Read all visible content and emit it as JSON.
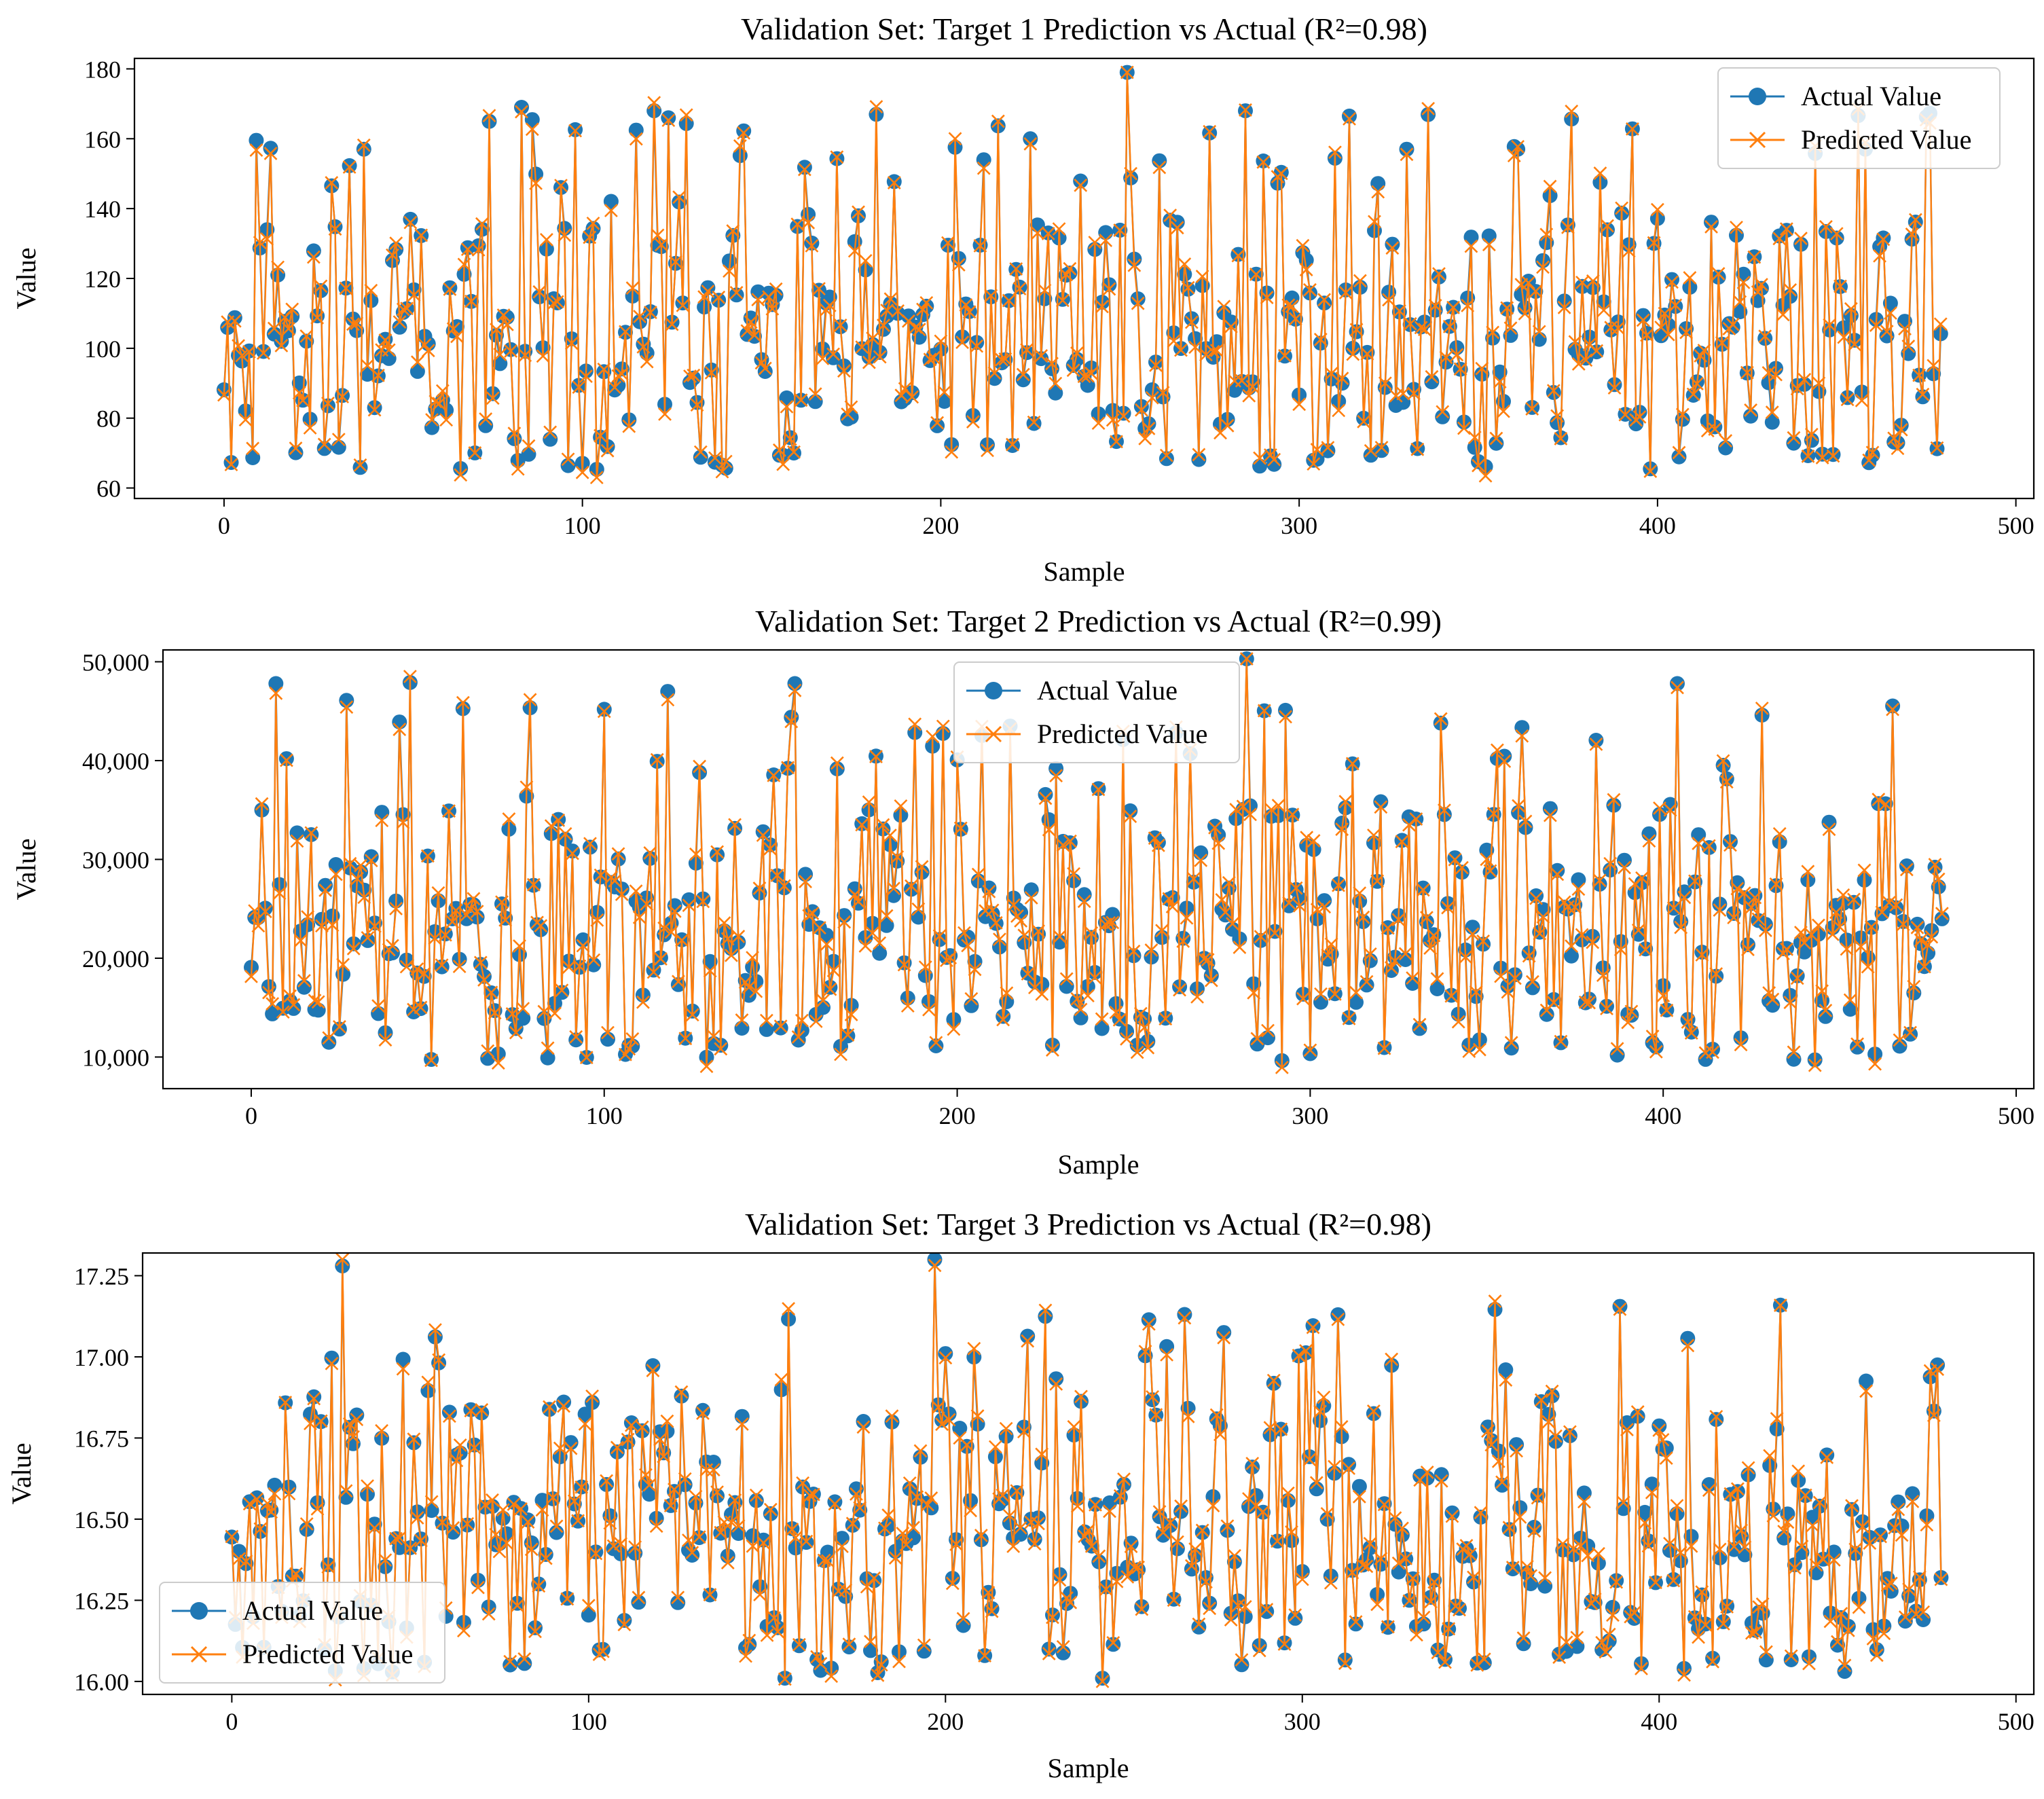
{
  "chart_data": [
    {
      "type": "line",
      "title": "Validation Set: Target 1 Prediction vs Actual (R²=0.98)",
      "xlabel": "Sample",
      "ylabel": "Value",
      "xlim": [
        -25,
        505
      ],
      "ylim": [
        57,
        183
      ],
      "xticks": [
        0,
        100,
        200,
        300,
        400,
        500
      ],
      "xtick_labels": [
        "0",
        "100",
        "200",
        "300",
        "400",
        "500"
      ],
      "yticks": [
        60,
        80,
        100,
        120,
        140,
        160,
        180
      ],
      "ytick_labels": [
        "60",
        "80",
        "100",
        "120",
        "140",
        "160",
        "180"
      ],
      "legend_position": "top-right",
      "n_samples": 480,
      "value_range": [
        63,
        179
      ],
      "peaks": [
        {
          "x": 252,
          "y": 179
        },
        {
          "x": 120,
          "y": 168
        },
        {
          "x": 285,
          "y": 168
        },
        {
          "x": 124,
          "y": 166
        },
        {
          "x": 83,
          "y": 169
        },
        {
          "x": 225,
          "y": 160
        },
        {
          "x": 458,
          "y": 157
        },
        {
          "x": 330,
          "y": 157
        },
        {
          "x": 361,
          "y": 157
        },
        {
          "x": 39,
          "y": 157
        }
      ],
      "series": [
        {
          "name": "Actual Value",
          "color": "#1f77b4",
          "marker": "circle",
          "seed": 11
        },
        {
          "name": "Predicted Value",
          "color": "#ff7f0e",
          "marker": "x",
          "seed": 11
        }
      ]
    },
    {
      "type": "line",
      "title": "Validation Set: Target 2 Prediction vs Actual (R²=0.99)",
      "xlabel": "Sample",
      "ylabel": "Value",
      "xlim": [
        -25,
        505
      ],
      "ylim": [
        6800,
        51200
      ],
      "xticks": [
        0,
        100,
        200,
        300,
        400,
        500
      ],
      "xtick_labels": [
        "0",
        "100",
        "200",
        "300",
        "400",
        "500"
      ],
      "yticks": [
        10000,
        20000,
        30000,
        40000,
        50000
      ],
      "ytick_labels": [
        "10,000",
        "20,000",
        "30,000",
        "40,000",
        "50,000"
      ],
      "legend_position": "top-center",
      "n_samples": 480,
      "value_range": [
        8800,
        50300
      ],
      "peaks": [
        {
          "x": 282,
          "y": 50300
        },
        {
          "x": 7,
          "y": 47800
        },
        {
          "x": 45,
          "y": 47900
        },
        {
          "x": 154,
          "y": 47800
        },
        {
          "x": 118,
          "y": 47000
        },
        {
          "x": 404,
          "y": 47800
        },
        {
          "x": 428,
          "y": 44600
        },
        {
          "x": 337,
          "y": 43800
        },
        {
          "x": 127,
          "y": 38800
        },
        {
          "x": 353,
          "y": 40200
        }
      ],
      "series": [
        {
          "name": "Actual Value",
          "color": "#1f77b4",
          "marker": "circle",
          "seed": 23
        },
        {
          "name": "Predicted Value",
          "color": "#ff7f0e",
          "marker": "x",
          "seed": 23
        }
      ]
    },
    {
      "type": "line",
      "title": "Validation Set: Target 3 Prediction vs Actual (R²=0.98)",
      "xlabel": "Sample",
      "ylabel": "Value",
      "xlim": [
        -25,
        505
      ],
      "ylim": [
        15.96,
        17.32
      ],
      "xticks": [
        0,
        100,
        200,
        300,
        400,
        500
      ],
      "xtick_labels": [
        "0",
        "100",
        "200",
        "300",
        "400",
        "500"
      ],
      "yticks": [
        16.0,
        16.25,
        16.5,
        16.75,
        17.0,
        17.25
      ],
      "ytick_labels": [
        "16.00",
        "16.25",
        "16.50",
        "16.75",
        "17.00",
        "17.25"
      ],
      "legend_position": "bottom-left",
      "n_samples": 480,
      "value_range": [
        16.0,
        17.3
      ],
      "peaks": [
        {
          "x": 197,
          "y": 17.3
        },
        {
          "x": 31,
          "y": 17.28
        },
        {
          "x": 155,
          "y": 16.01
        },
        {
          "x": 244,
          "y": 16.01
        },
        {
          "x": 407,
          "y": 16.04
        },
        {
          "x": 37,
          "y": 16.04
        }
      ],
      "series": [
        {
          "name": "Actual Value",
          "color": "#1f77b4",
          "marker": "circle",
          "seed": 37
        },
        {
          "name": "Predicted Value",
          "color": "#ff7f0e",
          "marker": "x",
          "seed": 37
        }
      ]
    }
  ]
}
